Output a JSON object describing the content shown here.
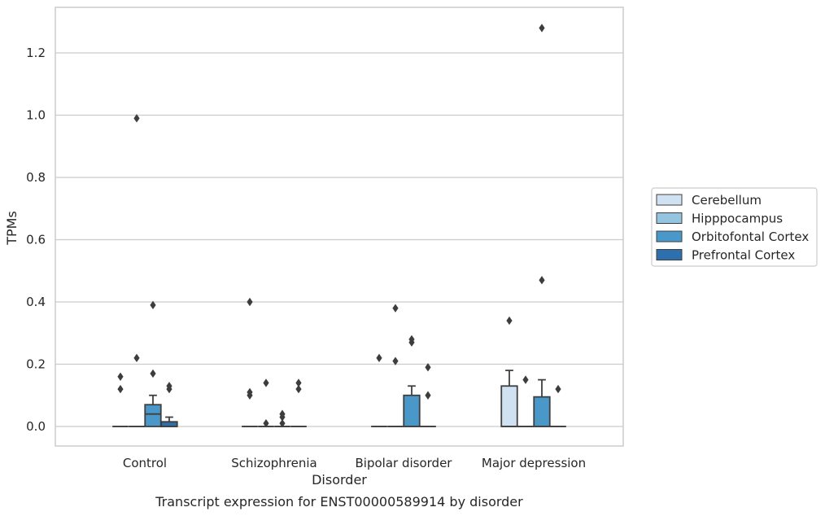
{
  "chart_data": {
    "type": "box",
    "xlabel": "Disorder",
    "ylabel": "TPMs",
    "caption": "Transcript expression for ENST00000589914 by disorder",
    "ylim": [
      -0.065,
      1.35
    ],
    "yticks": [
      "0.0",
      "0.2",
      "0.4",
      "0.6",
      "0.8",
      "1.0",
      "1.2"
    ],
    "grid": "horizontal",
    "legend_position": "right",
    "categories": [
      "Control",
      "Schizophrenia",
      "Bipolar disorder",
      "Major depression"
    ],
    "series": [
      {
        "name": "Cerebellum",
        "color": "#d0e1f2"
      },
      {
        "name": "Hipppocampus",
        "color": "#94c4df"
      },
      {
        "name": "Orbitofontal Cortex",
        "color": "#4a98c9"
      },
      {
        "name": "Prefrontal Cortex",
        "color": "#2e6fad"
      }
    ],
    "boxes": [
      {
        "category": "Control",
        "series": "Cerebellum",
        "q1": 0,
        "median": 0,
        "q3": 0,
        "whisker_low": 0,
        "whisker_high": 0,
        "outliers": [
          0.12,
          0.16
        ]
      },
      {
        "category": "Control",
        "series": "Hipppocampus",
        "q1": 0,
        "median": 0,
        "q3": 0,
        "whisker_low": 0,
        "whisker_high": 0,
        "outliers": [
          0.22,
          0.99
        ]
      },
      {
        "category": "Control",
        "series": "Orbitofontal Cortex",
        "q1": 0,
        "median": 0.04,
        "q3": 0.07,
        "whisker_low": 0,
        "whisker_high": 0.1,
        "outliers": [
          0.17,
          0.39
        ]
      },
      {
        "category": "Control",
        "series": "Prefrontal Cortex",
        "q1": 0,
        "median": 0,
        "q3": 0.015,
        "whisker_low": 0,
        "whisker_high": 0.03,
        "outliers": [
          0.12,
          0.13
        ]
      },
      {
        "category": "Schizophrenia",
        "series": "Cerebellum",
        "q1": 0,
        "median": 0,
        "q3": 0,
        "whisker_low": 0,
        "whisker_high": 0,
        "outliers": [
          0.1,
          0.11,
          0.4
        ]
      },
      {
        "category": "Schizophrenia",
        "series": "Hipppocampus",
        "q1": 0,
        "median": 0,
        "q3": 0,
        "whisker_low": 0,
        "whisker_high": 0,
        "outliers": [
          0.01,
          0.14
        ]
      },
      {
        "category": "Schizophrenia",
        "series": "Orbitofontal Cortex",
        "q1": 0,
        "median": 0,
        "q3": 0,
        "whisker_low": 0,
        "whisker_high": 0,
        "outliers": [
          0.01,
          0.03,
          0.04
        ]
      },
      {
        "category": "Schizophrenia",
        "series": "Prefrontal Cortex",
        "q1": 0,
        "median": 0,
        "q3": 0,
        "whisker_low": 0,
        "whisker_high": 0,
        "outliers": [
          0.12,
          0.14
        ]
      },
      {
        "category": "Bipolar disorder",
        "series": "Cerebellum",
        "q1": 0,
        "median": 0,
        "q3": 0,
        "whisker_low": 0,
        "whisker_high": 0,
        "outliers": [
          0.22
        ]
      },
      {
        "category": "Bipolar disorder",
        "series": "Hipppocampus",
        "q1": 0,
        "median": 0,
        "q3": 0,
        "whisker_low": 0,
        "whisker_high": 0,
        "outliers": [
          0.21,
          0.38
        ]
      },
      {
        "category": "Bipolar disorder",
        "series": "Orbitofontal Cortex",
        "q1": 0,
        "median": 0,
        "q3": 0.1,
        "whisker_low": 0,
        "whisker_high": 0.13,
        "outliers": [
          0.27,
          0.28
        ]
      },
      {
        "category": "Bipolar disorder",
        "series": "Prefrontal Cortex",
        "q1": 0,
        "median": 0,
        "q3": 0,
        "whisker_low": 0,
        "whisker_high": 0,
        "outliers": [
          0.1,
          0.19
        ]
      },
      {
        "category": "Major depression",
        "series": "Cerebellum",
        "q1": 0,
        "median": 0,
        "q3": 0.13,
        "whisker_low": 0,
        "whisker_high": 0.18,
        "outliers": [
          0.34
        ]
      },
      {
        "category": "Major depression",
        "series": "Hipppocampus",
        "q1": 0,
        "median": 0,
        "q3": 0,
        "whisker_low": 0,
        "whisker_high": 0,
        "outliers": [
          0.15
        ]
      },
      {
        "category": "Major depression",
        "series": "Orbitofontal Cortex",
        "q1": 0,
        "median": 0,
        "q3": 0.095,
        "whisker_low": 0,
        "whisker_high": 0.15,
        "outliers": [
          0.47,
          1.28
        ]
      },
      {
        "category": "Major depression",
        "series": "Prefrontal Cortex",
        "q1": 0,
        "median": 0,
        "q3": 0,
        "whisker_low": 0,
        "whisker_high": 0,
        "outliers": [
          0.12
        ]
      }
    ]
  }
}
